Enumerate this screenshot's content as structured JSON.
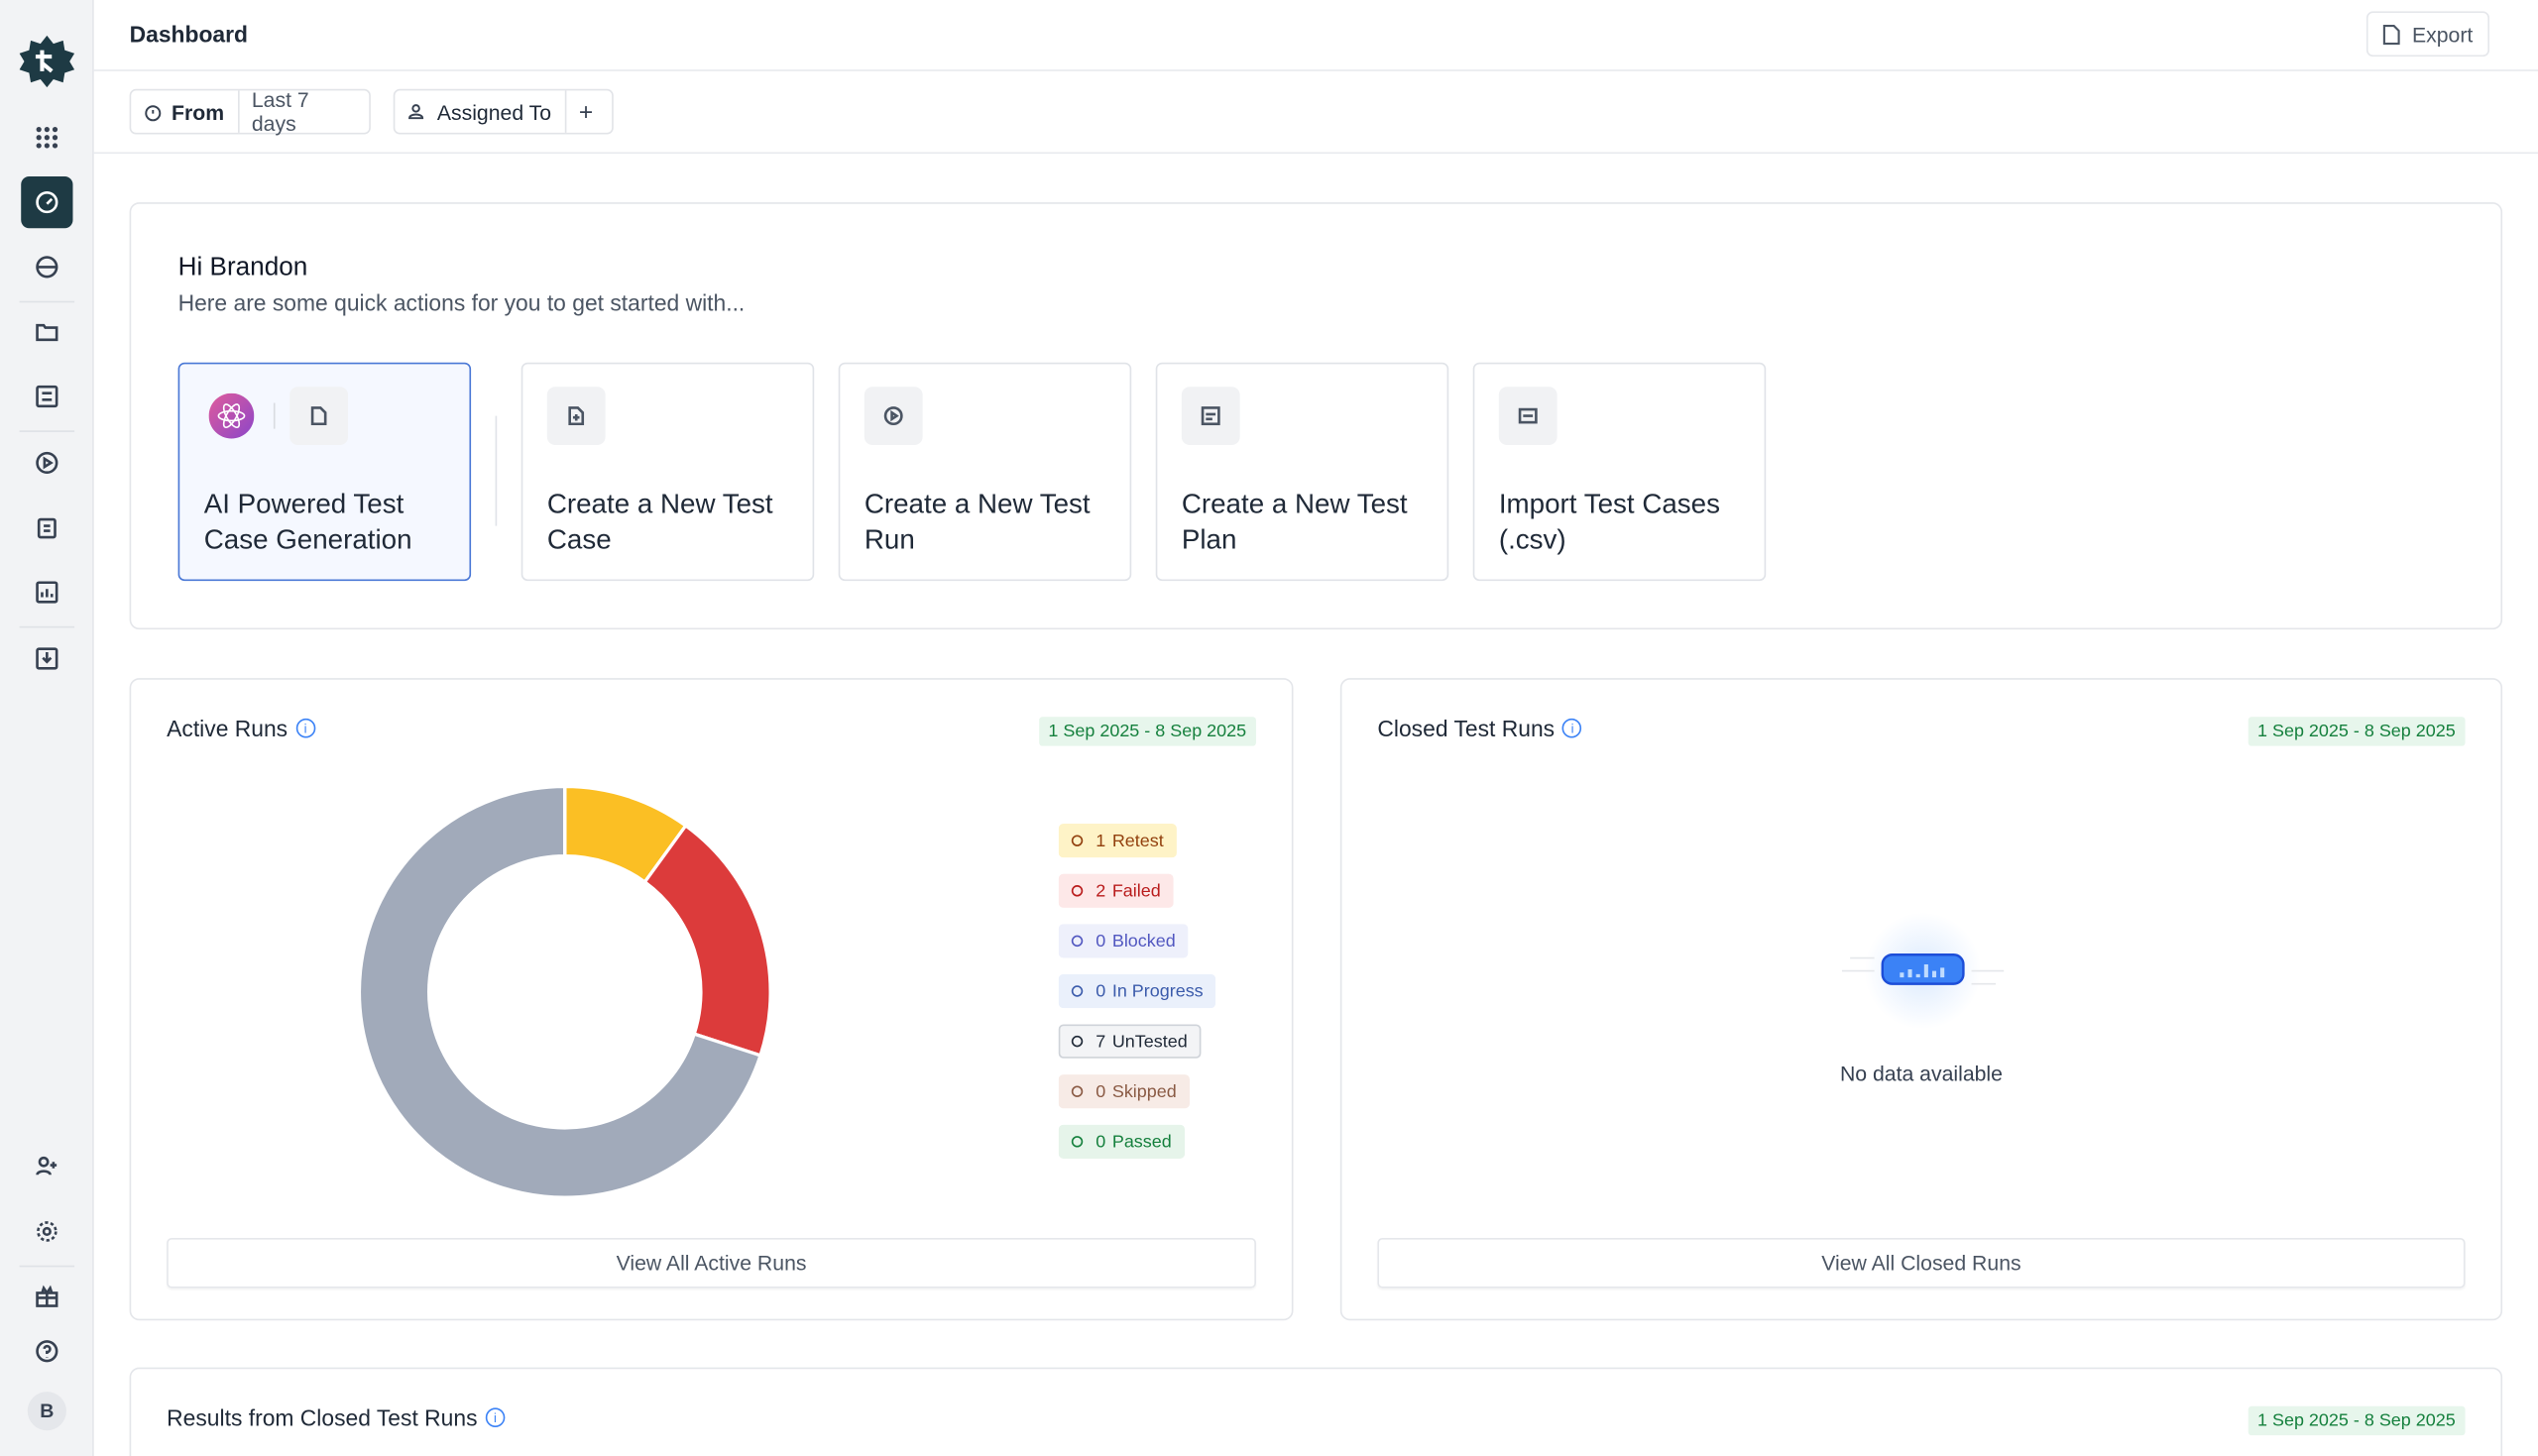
{
  "sidebar": {
    "avatar": "B"
  },
  "header": {
    "title": "Dashboard",
    "export": "Export"
  },
  "filters": {
    "from_label": "From",
    "from_value": "Last 7 days",
    "assigned": "Assigned To",
    "add": "+"
  },
  "welcome": {
    "greeting": "Hi Brandon",
    "subtitle": "Here are some quick actions for you to get started with...",
    "actions": [
      {
        "label": "AI Powered Test Case Generation"
      },
      {
        "label": "Create a New Test Case"
      },
      {
        "label": "Create a New Test Run"
      },
      {
        "label": "Create a New Test Plan"
      },
      {
        "label": "Import Test Cases (.csv)"
      }
    ]
  },
  "active_runs": {
    "title": "Active Runs",
    "date_range": "1 Sep 2025 - 8 Sep 2025",
    "chart": {
      "type": "pie",
      "series": [
        {
          "name": "Retest",
          "value": 1,
          "color": "#fbbf24"
        },
        {
          "name": "Failed",
          "value": 2,
          "color": "#dc3b3b"
        },
        {
          "name": "Blocked",
          "value": 0,
          "color": "#6366f1"
        },
        {
          "name": "In Progress",
          "value": 0,
          "color": "#3b82f6"
        },
        {
          "name": "UnTested",
          "value": 7,
          "color": "#a1aaba"
        },
        {
          "name": "Skipped",
          "value": 0,
          "color": "#a0705a"
        },
        {
          "name": "Passed",
          "value": 0,
          "color": "#22a05a"
        }
      ]
    },
    "button": "View All Active Runs"
  },
  "closed_runs": {
    "title": "Closed Test Runs",
    "date_range": "1 Sep 2025 - 8 Sep 2025",
    "empty": "No data available",
    "button": "View All Closed Runs"
  },
  "results": {
    "title": "Results from Closed Test Runs",
    "date_range": "1 Sep 2025 - 8 Sep 2025"
  }
}
